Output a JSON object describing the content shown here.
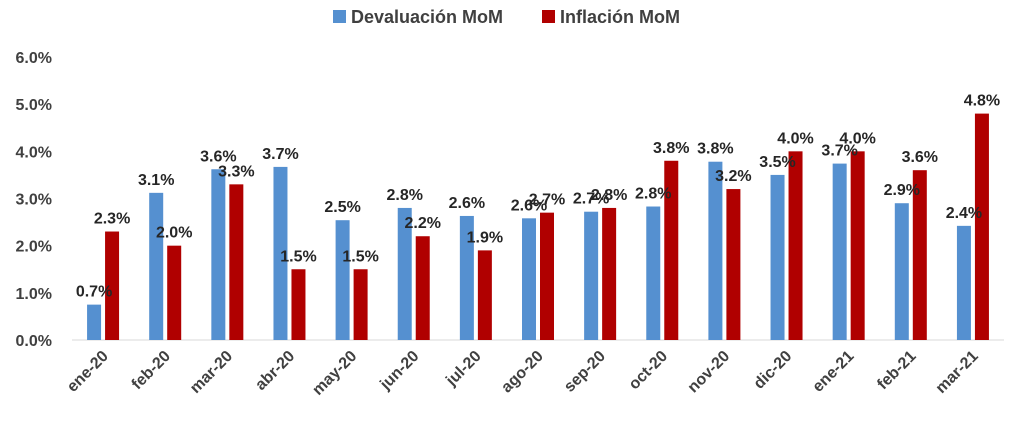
{
  "chart_data": {
    "type": "bar",
    "title": "",
    "xlabel": "",
    "ylabel": "",
    "ylim": [
      0,
      6
    ],
    "yticks": [
      "0.0%",
      "1.0%",
      "2.0%",
      "3.0%",
      "4.0%",
      "5.0%",
      "6.0%"
    ],
    "grid": false,
    "legend_position": "top-center",
    "categories": [
      "ene-20",
      "feb-20",
      "mar-20",
      "abr-20",
      "may-20",
      "jun-20",
      "jul-20",
      "ago-20",
      "sep-20",
      "oct-20",
      "nov-20",
      "dic-20",
      "ene-21",
      "feb-21",
      "mar-21"
    ],
    "series": [
      {
        "name": "Devaluación MoM",
        "color": "#5590D0",
        "values": [
          0.75,
          3.12,
          3.62,
          3.67,
          2.54,
          2.8,
          2.63,
          2.58,
          2.72,
          2.83,
          3.78,
          3.5,
          3.74,
          2.9,
          2.42
        ],
        "labels": [
          "0.7%",
          "3.1%",
          "3.6%",
          "3.7%",
          "2.5%",
          "2.8%",
          "2.6%",
          "2.6%",
          "2.7%",
          "2.8%",
          "3.8%",
          "3.5%",
          "3.7%",
          "2.9%",
          "2.4%"
        ]
      },
      {
        "name": "Inflación MoM",
        "color": "#B00000",
        "values": [
          2.3,
          2.0,
          3.3,
          1.5,
          1.5,
          2.2,
          1.9,
          2.7,
          2.8,
          3.8,
          3.2,
          4.0,
          4.0,
          3.6,
          4.8
        ],
        "labels": [
          "2.3%",
          "2.0%",
          "3.3%",
          "1.5%",
          "1.5%",
          "2.2%",
          "1.9%",
          "2.7%",
          "2.8%",
          "3.8%",
          "3.2%",
          "4.0%",
          "4.0%",
          "3.6%",
          "4.8%"
        ]
      }
    ]
  }
}
